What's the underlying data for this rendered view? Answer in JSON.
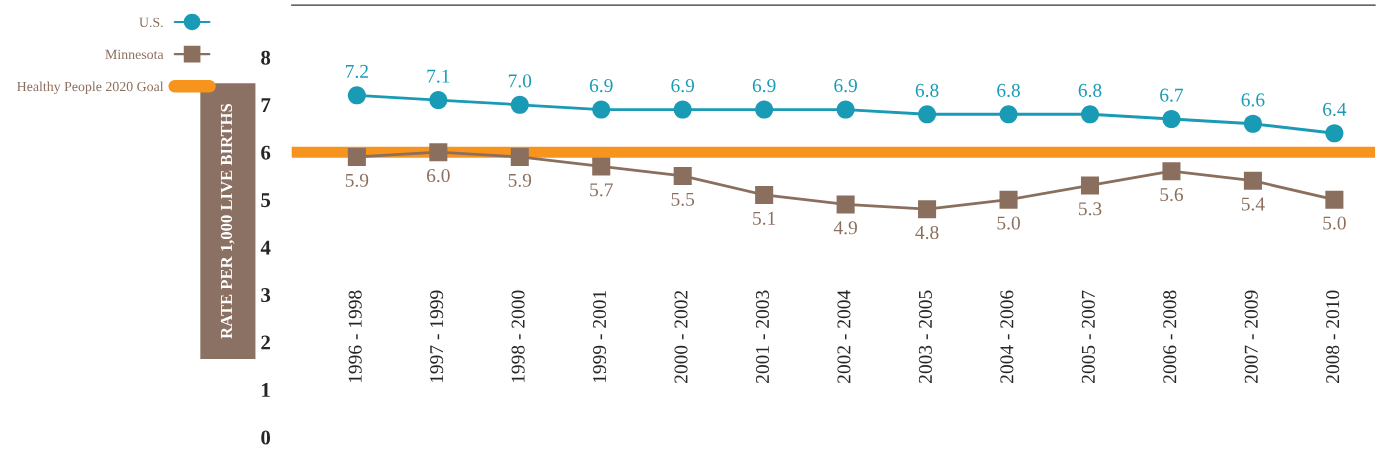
{
  "chart_data": {
    "type": "line",
    "ylabel": "RATE PER 1,000 LIVE BIRTHS",
    "categories": [
      "1996 - 1998",
      "1997 - 1999",
      "1998 - 2000",
      "1999 - 2001",
      "2000 - 2002",
      "2001 - 2003",
      "2002 - 2004",
      "2003 - 2005",
      "2004 - 2006",
      "2005 - 2007",
      "2006 - 2008",
      "2007 - 2009",
      "2008 - 2010"
    ],
    "series": [
      {
        "name": "U.S.",
        "color": "#1a9bb5",
        "marker": "circle",
        "values": [
          7.2,
          7.1,
          7.0,
          6.9,
          6.9,
          6.9,
          6.9,
          6.8,
          6.8,
          6.8,
          6.7,
          6.6,
          6.4
        ],
        "value_labels": [
          "7.2",
          "7.1",
          "7.0",
          "6.9",
          "6.9",
          "6.9",
          "6.9",
          "6.8",
          "6.8",
          "6.8",
          "6.7",
          "6.6",
          "6.4"
        ]
      },
      {
        "name": "Minnesota",
        "color": "#8b6f5e",
        "marker": "square",
        "values": [
          5.9,
          6.0,
          5.9,
          5.7,
          5.5,
          5.1,
          4.9,
          4.8,
          5.0,
          5.3,
          5.6,
          5.4,
          5.0
        ],
        "value_labels": [
          "5.9",
          "6.0",
          "5.9",
          "5.7",
          "5.5",
          "5.1",
          "4.9",
          "4.8",
          "5.0",
          "5.3",
          "5.6",
          "5.4",
          "5.0"
        ]
      }
    ],
    "ref_lines": [
      {
        "axis": "y",
        "value": 6,
        "label": "Healthy People 2020 Goal",
        "color": "#f7941d"
      }
    ],
    "ylim": [
      0,
      9.1
    ],
    "yticks": [
      0,
      1,
      2,
      3,
      4,
      5,
      6,
      7,
      8
    ],
    "grid": false,
    "legend": "top left",
    "line_style": "solid"
  }
}
